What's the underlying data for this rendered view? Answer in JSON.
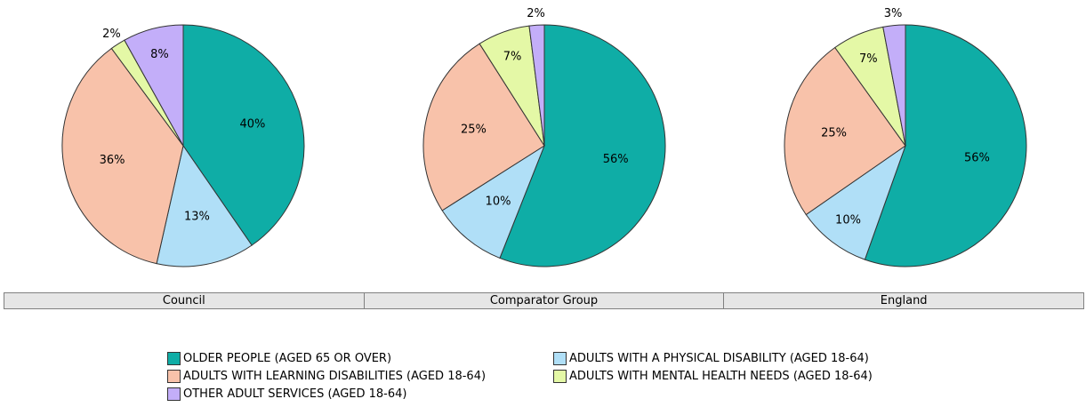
{
  "chart_data": [
    {
      "type": "pie",
      "title": "Council",
      "categories": [
        "OLDER PEOPLE (AGED 65 OR OVER)",
        "ADULTS WITH A PHYSICAL DISABILITY (AGED 18-64)",
        "ADULTS WITH LEARNING DISABILITIES (AGED 18-64)",
        "ADULTS WITH MENTAL HEALTH NEEDS (AGED 18-64)",
        "OTHER ADULT SERVICES (AGED 18-64)"
      ],
      "values": [
        40,
        13,
        36,
        2,
        8
      ],
      "labels": [
        "40%",
        "13%",
        "36%",
        "2%",
        "8%"
      ]
    },
    {
      "type": "pie",
      "title": "Comparator Group",
      "categories": [
        "OLDER PEOPLE (AGED 65 OR OVER)",
        "ADULTS WITH A PHYSICAL DISABILITY (AGED 18-64)",
        "ADULTS WITH LEARNING DISABILITIES (AGED 18-64)",
        "ADULTS WITH MENTAL HEALTH NEEDS (AGED 18-64)",
        "OTHER ADULT SERVICES (AGED 18-64)"
      ],
      "values": [
        56,
        10,
        25,
        7,
        2
      ],
      "labels": [
        "56%",
        "10%",
        "25%",
        "7%",
        "2%"
      ]
    },
    {
      "type": "pie",
      "title": "England",
      "categories": [
        "OLDER PEOPLE (AGED 65 OR OVER)",
        "ADULTS WITH A PHYSICAL DISABILITY (AGED 18-64)",
        "ADULTS WITH LEARNING DISABILITIES (AGED 18-64)",
        "ADULTS WITH MENTAL HEALTH NEEDS (AGED 18-64)",
        "OTHER ADULT SERVICES (AGED 18-64)"
      ],
      "values": [
        56,
        10,
        25,
        7,
        3
      ],
      "labels": [
        "56%",
        "10%",
        "25%",
        "7%",
        "3%"
      ]
    }
  ],
  "colors": [
    "#0fada6",
    "#b0dff7",
    "#f8c2aa",
    "#e4f8a6",
    "#c3aef9"
  ],
  "legend": {
    "placement": "bottom-center",
    "items": [
      {
        "label": "OLDER PEOPLE (AGED 65 OR OVER)",
        "color": "#0fada6"
      },
      {
        "label": "ADULTS WITH A PHYSICAL DISABILITY (AGED 18-64)",
        "color": "#b0dff7"
      },
      {
        "label": "ADULTS WITH LEARNING DISABILITIES (AGED 18-64)",
        "color": "#f8c2aa"
      },
      {
        "label": "ADULTS WITH MENTAL HEALTH NEEDS (AGED 18-64)",
        "color": "#e4f8a6"
      },
      {
        "label": "OTHER ADULT SERVICES (AGED 18-64)",
        "color": "#c3aef9"
      }
    ]
  }
}
